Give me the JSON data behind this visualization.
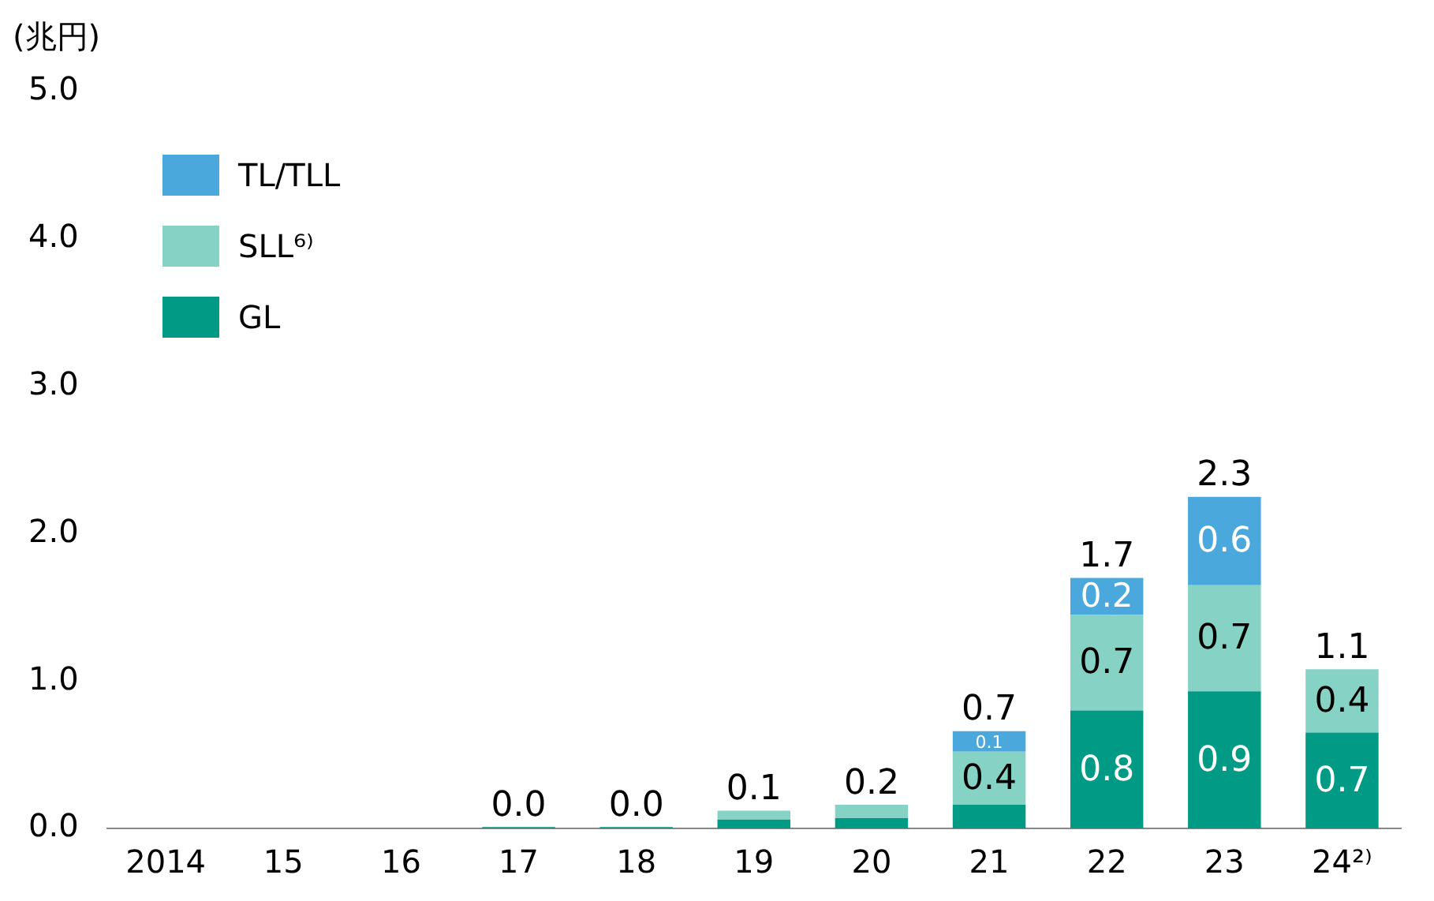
{
  "chart_data": {
    "type": "bar",
    "stacked": true,
    "ylabel": "(兆円)",
    "categories": [
      "2014",
      "15",
      "16",
      "17",
      "18",
      "19",
      "20",
      "21",
      "22",
      "23",
      "24²⁾"
    ],
    "series": [
      {
        "name": "GL",
        "color": "#009a85",
        "values": [
          0,
          0,
          0,
          0.01,
          0.01,
          0.06,
          0.07,
          0.16,
          0.8,
          0.93,
          0.65
        ],
        "value_labels": [
          null,
          null,
          null,
          null,
          null,
          null,
          null,
          null,
          "0.8",
          "0.9",
          "0.7"
        ]
      },
      {
        "name": "SLL⁶⁾",
        "color": "#86d3c6",
        "values": [
          0,
          0,
          0,
          0,
          0,
          0.06,
          0.09,
          0.36,
          0.65,
          0.72,
          0.43
        ],
        "value_labels": [
          null,
          null,
          null,
          null,
          null,
          null,
          null,
          "0.4",
          "0.7",
          "0.7",
          "0.4"
        ]
      },
      {
        "name": "TL/TLL",
        "color": "#4aa8dc",
        "values": [
          0,
          0,
          0,
          0,
          0,
          0,
          0,
          0.14,
          0.25,
          0.6,
          0
        ],
        "value_labels": [
          null,
          null,
          null,
          null,
          null,
          null,
          null,
          "0.1",
          "0.2",
          "0.6",
          null
        ]
      }
    ],
    "totals": [
      null,
      null,
      null,
      "0.0",
      "0.0",
      "0.1",
      "0.2",
      "0.7",
      "1.7",
      "2.3",
      "1.1"
    ],
    "ylim": [
      0,
      5
    ],
    "yticks": [
      {
        "value": 0,
        "label": "0.0"
      },
      {
        "value": 1,
        "label": "1.0"
      },
      {
        "value": 2,
        "label": "2.0"
      },
      {
        "value": 3,
        "label": "3.0"
      },
      {
        "value": 4,
        "label": "4.0"
      },
      {
        "value": 5,
        "label": "5.0"
      }
    ],
    "grid": false,
    "legend": "top left"
  }
}
